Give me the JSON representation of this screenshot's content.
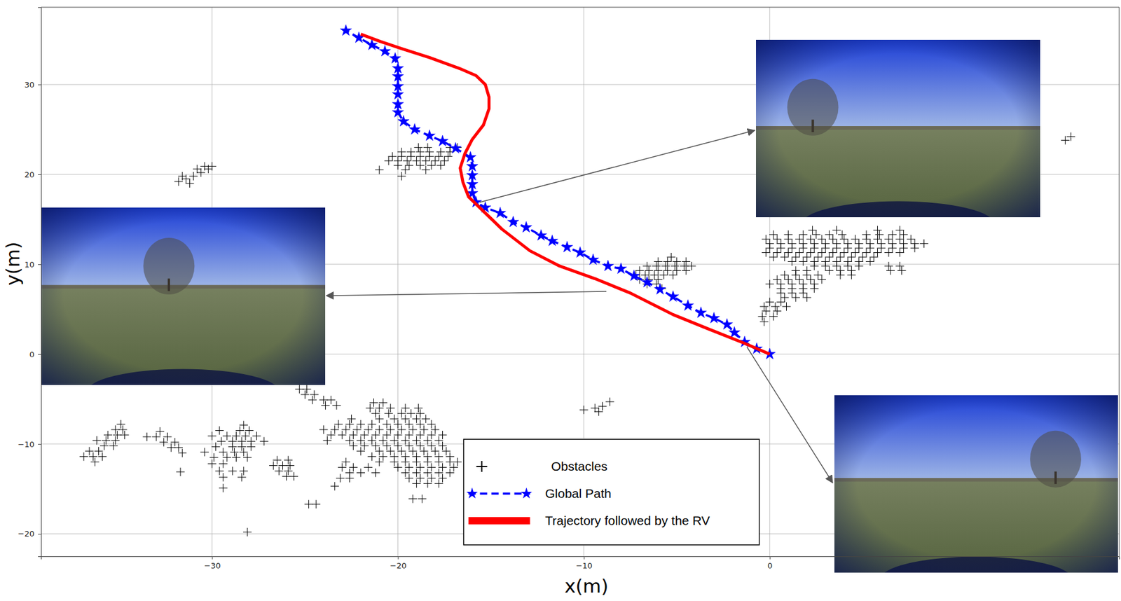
{
  "chart_data": {
    "type": "scatter",
    "xlabel": "x(m)",
    "ylabel": "y(m)",
    "xlim": [
      -39.2,
      18.8
    ],
    "ylim": [
      -22.5,
      38.6
    ],
    "xticks": [
      {
        "value": -30,
        "label": "−30"
      },
      {
        "value": -20,
        "label": "−20"
      },
      {
        "value": -10,
        "label": "−10"
      },
      0
    ],
    "yticks": [
      {
        "value": -20,
        "label": "−20"
      },
      {
        "value": -10,
        "label": "−10"
      },
      0,
      10,
      20,
      30
    ],
    "grid": true,
    "legend": "lower center",
    "series": [
      {
        "name": "Obstacles",
        "type": "scatter",
        "marker": "plus",
        "color": "#000000",
        "x": [
          15.9,
          16.2,
          -31.8,
          -31.4,
          -31.0,
          -30.6,
          -30.2,
          -31.2,
          -30.8,
          -30.4,
          -31.6,
          -30.0,
          -18.9,
          -18.4,
          -17.2,
          -16.8,
          -19.8,
          -19.3,
          -18.8,
          -18.3,
          -17.7,
          -17.2,
          -20.3,
          -19.8,
          -19.3,
          -18.8,
          -18.3,
          -17.8,
          -17.3,
          -20.5,
          -20.0,
          -19.5,
          -19.0,
          -18.5,
          -18.0,
          -17.5,
          -20.0,
          -19.4,
          -18.8,
          -18.2,
          -17.7,
          -21.0,
          -19.6,
          -18.5,
          -19.8,
          -5.3,
          -6.0,
          -5.5,
          -5.0,
          -4.5,
          -6.6,
          -6.1,
          -5.6,
          -5.1,
          -4.6,
          -4.2,
          -7.0,
          -6.5,
          -6.0,
          -5.5,
          -5.0,
          -4.5,
          -7.2,
          -6.7,
          -6.2,
          -5.7,
          -5.2,
          -7.0,
          -6.5,
          -6.0,
          -6.6,
          -6.1,
          -5.8,
          2.3,
          3.6,
          5.8,
          7.0,
          0.2,
          1.0,
          1.8,
          2.5,
          3.2,
          3.9,
          5.2,
          5.9,
          6.6,
          7.2,
          -0.2,
          0.4,
          1.0,
          1.6,
          2.2,
          2.8,
          3.4,
          4.0,
          4.6,
          5.2,
          5.8,
          6.4,
          7.0,
          7.6,
          0.0,
          0.6,
          1.2,
          1.8,
          2.4,
          3.0,
          3.6,
          4.2,
          4.8,
          5.4,
          6.0,
          6.6,
          7.2,
          7.8,
          8.3,
          0.0,
          0.6,
          1.2,
          1.8,
          2.4,
          3.0,
          3.6,
          4.2,
          4.8,
          5.4,
          6.0,
          6.6,
          7.2,
          7.8,
          -0.2,
          0.4,
          1.0,
          1.6,
          2.2,
          2.8,
          3.4,
          4.0,
          4.6,
          5.2,
          5.8,
          6.4,
          7.0,
          0.2,
          0.8,
          1.4,
          2.0,
          2.6,
          3.2,
          3.8,
          4.4,
          5.0,
          5.6,
          1.2,
          1.8,
          2.4,
          3.0,
          3.6,
          4.2,
          4.8,
          5.4,
          2.4,
          3.0,
          3.6,
          4.2,
          4.8,
          6.4,
          7.0,
          1.4,
          2.0,
          3.2,
          3.8,
          4.4,
          6.5,
          7.1,
          0.8,
          1.4,
          2.0,
          2.6,
          3.8,
          4.4,
          0.4,
          1.0,
          1.6,
          2.2,
          2.8,
          0.0,
          0.6,
          1.2,
          1.8,
          2.4,
          0.6,
          1.2,
          1.8,
          2.4,
          0.6,
          1.2,
          1.8,
          0.8,
          1.4,
          2.0,
          0.0,
          0.6,
          -0.3,
          0.3,
          0.9,
          -0.2,
          0.4,
          -0.4,
          0.2,
          -0.3,
          -10.0,
          -9.4,
          -9.0,
          -8.6,
          -9.2,
          -34.9,
          -35.2,
          -34.8,
          -35.6,
          -35.1,
          -34.7,
          -36.2,
          -35.7,
          -35.2,
          -35.8,
          -35.3,
          -36.6,
          -36.1,
          -36.9,
          -36.4,
          -35.9,
          -36.3,
          -32.8,
          -33.5,
          -33.0,
          -32.4,
          -32.6,
          -32.0,
          -32.2,
          -31.8,
          -31.6,
          -31.7,
          -28.3,
          -29.6,
          -28.5,
          -28.0,
          -30.0,
          -29.2,
          -28.7,
          -28.2,
          -27.6,
          -29.5,
          -28.9,
          -28.4,
          -27.9,
          -27.2,
          -29.8,
          -28.9,
          -28.4,
          -27.9,
          -30.4,
          -29.4,
          -28.8,
          -28.3,
          -29.9,
          -29.2,
          -28.7,
          -28.1,
          -30.0,
          -29.4,
          -29.6,
          -28.9,
          -28.3,
          -29.4,
          -28.4,
          -29.4,
          -28.1,
          -26.5,
          -25.9,
          -26.7,
          -26.2,
          -25.8,
          -26.4,
          -25.9,
          -26.0,
          -25.6,
          -25.3,
          -24.9,
          -25.0,
          -24.5,
          -24.6,
          -24.0,
          -23.6,
          -23.9,
          -23.3,
          -24.8,
          -24.4,
          -21.3,
          -20.8,
          -21.5,
          -21.0,
          -20.4,
          -19.6,
          -18.9,
          -21.2,
          -20.5,
          -19.8,
          -19.3,
          -18.8,
          -22.5,
          -21.0,
          -20.2,
          -19.6,
          -19.0,
          -18.5,
          -23.2,
          -22.6,
          -22.0,
          -21.4,
          -20.6,
          -20.0,
          -19.4,
          -18.8,
          -18.2,
          -24.0,
          -23.4,
          -22.8,
          -22.2,
          -21.6,
          -21.0,
          -20.4,
          -19.8,
          -19.2,
          -18.6,
          -18.0,
          -23.6,
          -23.0,
          -22.4,
          -21.8,
          -21.2,
          -20.6,
          -20.0,
          -19.4,
          -18.8,
          -18.2,
          -17.6,
          -23.8,
          -22.6,
          -22.0,
          -21.4,
          -20.8,
          -20.2,
          -19.6,
          -19.0,
          -18.4,
          -17.8,
          -22.4,
          -21.8,
          -21.2,
          -20.6,
          -20.0,
          -19.4,
          -18.8,
          -18.2,
          -17.6,
          -22.0,
          -21.0,
          -20.4,
          -19.8,
          -19.2,
          -18.6,
          -18.0,
          -17.4,
          -21.4,
          -20.8,
          -20.2,
          -19.6,
          -19.0,
          -18.4,
          -17.8,
          -17.2,
          -22.8,
          -21.0,
          -20.2,
          -19.6,
          -19.0,
          -18.4,
          -17.8,
          -17.2,
          -16.8,
          -23.0,
          -22.4,
          -21.6,
          -20.0,
          -19.4,
          -18.8,
          -18.2,
          -17.6,
          -17.0,
          -22.6,
          -22.0,
          -21.2,
          -19.6,
          -19.0,
          -18.4,
          -17.8,
          -17.2,
          -23.1,
          -22.6,
          -19.4,
          -18.8,
          -18.2,
          -17.6,
          -19.0,
          -18.4,
          -17.8,
          -23.4,
          -19.2,
          -18.7
        ],
        "values": [
          23.8,
          24.2,
          19.2,
          19.5,
          19.8,
          20.2,
          20.6,
          19.0,
          20.6,
          20.9,
          19.8,
          20.9,
          23.0,
          23.0,
          23.0,
          23.0,
          22.5,
          22.5,
          22.5,
          22.5,
          22.5,
          22.5,
          22.0,
          22.0,
          22.0,
          22.0,
          22.0,
          22.0,
          22.0,
          21.5,
          21.5,
          21.5,
          21.5,
          21.5,
          21.5,
          21.5,
          21.0,
          21.0,
          21.0,
          21.0,
          21.0,
          20.5,
          20.5,
          20.5,
          19.8,
          10.8,
          10.3,
          10.3,
          10.3,
          10.3,
          9.8,
          9.8,
          9.8,
          9.8,
          9.8,
          9.8,
          9.3,
          9.3,
          9.3,
          9.3,
          9.3,
          9.3,
          8.8,
          8.8,
          8.8,
          8.8,
          8.8,
          8.3,
          8.3,
          8.3,
          7.8,
          7.8,
          7.3,
          13.8,
          13.8,
          13.8,
          13.8,
          13.3,
          13.3,
          13.3,
          13.3,
          13.3,
          13.3,
          13.3,
          13.3,
          13.3,
          13.3,
          12.8,
          12.8,
          12.8,
          12.8,
          12.8,
          12.8,
          12.8,
          12.8,
          12.8,
          12.8,
          12.8,
          12.8,
          12.8,
          12.8,
          12.3,
          12.3,
          12.3,
          12.3,
          12.3,
          12.3,
          12.3,
          12.3,
          12.3,
          12.3,
          12.3,
          12.3,
          12.3,
          12.3,
          12.3,
          11.8,
          11.8,
          11.8,
          11.8,
          11.8,
          11.8,
          11.8,
          11.8,
          11.8,
          11.8,
          11.8,
          11.8,
          11.8,
          11.8,
          11.3,
          11.3,
          11.3,
          11.3,
          11.3,
          11.3,
          11.3,
          11.3,
          11.3,
          11.3,
          11.3,
          11.3,
          11.3,
          10.8,
          10.8,
          10.8,
          10.8,
          10.8,
          10.8,
          10.8,
          10.8,
          10.8,
          10.8,
          10.3,
          10.3,
          10.3,
          10.3,
          10.3,
          10.3,
          10.3,
          10.3,
          9.8,
          9.8,
          9.8,
          9.8,
          9.8,
          9.8,
          9.8,
          9.3,
          9.3,
          9.3,
          9.3,
          9.3,
          9.3,
          9.3,
          8.8,
          8.8,
          8.8,
          8.8,
          8.8,
          8.8,
          8.3,
          8.3,
          8.3,
          8.3,
          8.3,
          7.8,
          7.8,
          7.8,
          7.8,
          7.8,
          7.3,
          7.3,
          7.3,
          7.3,
          6.8,
          6.8,
          6.8,
          6.3,
          6.3,
          6.3,
          5.8,
          5.8,
          5.3,
          5.3,
          5.3,
          4.8,
          4.8,
          4.2,
          4.2,
          3.6,
          -6.2,
          -6.0,
          -5.8,
          -5.3,
          -6.4,
          -7.8,
          -8.4,
          -8.4,
          -9.0,
          -9.0,
          -9.0,
          -9.6,
          -9.6,
          -9.6,
          -10.2,
          -10.2,
          -10.8,
          -10.8,
          -11.4,
          -11.4,
          -11.4,
          -12.0,
          -8.6,
          -9.2,
          -9.2,
          -9.2,
          -9.8,
          -9.8,
          -10.4,
          -10.4,
          -11.0,
          -13.1,
          -7.9,
          -8.5,
          -8.5,
          -8.5,
          -9.1,
          -9.1,
          -9.1,
          -9.1,
          -9.1,
          -9.7,
          -9.7,
          -9.7,
          -9.7,
          -9.7,
          -10.3,
          -10.3,
          -10.3,
          -10.3,
          -10.9,
          -10.9,
          -10.9,
          -10.9,
          -11.5,
          -11.5,
          -11.5,
          -11.5,
          -12.2,
          -12.2,
          -13.0,
          -13.0,
          -13.0,
          -13.7,
          -13.7,
          -14.9,
          -19.8,
          -11.8,
          -11.8,
          -12.4,
          -12.4,
          -12.4,
          -13.0,
          -13.0,
          -13.6,
          -13.6,
          -3.9,
          -3.9,
          -4.5,
          -4.5,
          -5.1,
          -5.1,
          -5.1,
          -5.7,
          -5.7,
          -16.7,
          -16.7,
          -5.4,
          -5.4,
          -6.0,
          -6.0,
          -6.0,
          -6.0,
          -6.0,
          -6.6,
          -6.6,
          -6.6,
          -6.6,
          -6.6,
          -7.2,
          -7.2,
          -7.2,
          -7.2,
          -7.2,
          -7.2,
          -7.8,
          -7.8,
          -7.8,
          -7.8,
          -7.8,
          -7.8,
          -7.8,
          -7.8,
          -7.8,
          -8.4,
          -8.4,
          -8.4,
          -8.4,
          -8.4,
          -8.4,
          -8.4,
          -8.4,
          -8.4,
          -8.4,
          -8.4,
          -9.0,
          -9.0,
          -9.0,
          -9.0,
          -9.0,
          -9.0,
          -9.0,
          -9.0,
          -9.0,
          -9.0,
          -9.0,
          -9.6,
          -9.6,
          -9.6,
          -9.6,
          -9.6,
          -9.6,
          -9.6,
          -9.6,
          -9.6,
          -9.6,
          -10.2,
          -10.2,
          -10.2,
          -10.2,
          -10.2,
          -10.2,
          -10.2,
          -10.2,
          -10.2,
          -10.8,
          -10.8,
          -10.8,
          -10.8,
          -10.8,
          -10.8,
          -10.8,
          -10.8,
          -11.4,
          -11.4,
          -11.4,
          -11.4,
          -11.4,
          -11.4,
          -11.4,
          -11.4,
          -12.0,
          -12.0,
          -12.0,
          -12.0,
          -12.0,
          -12.0,
          -12.0,
          -12.0,
          -12.0,
          -12.6,
          -12.6,
          -12.6,
          -12.6,
          -12.6,
          -12.6,
          -12.6,
          -12.6,
          -12.6,
          -13.2,
          -13.2,
          -13.2,
          -13.2,
          -13.2,
          -13.2,
          -13.2,
          -13.2,
          -13.8,
          -13.8,
          -13.8,
          -13.8,
          -13.8,
          -13.8,
          -14.4,
          -14.4,
          -14.4,
          -14.7,
          -16.1,
          -16.1
        ]
      },
      {
        "name": "Global Path",
        "type": "line",
        "marker": "star",
        "line_style": "dashed",
        "color": "#0000ff",
        "x": [
          0,
          -0.7,
          -1.35,
          -1.9,
          -2.3,
          -3.0,
          -3.7,
          -4.4,
          -5.2,
          -5.9,
          -6.6,
          -7.3,
          -8.0,
          -8.7,
          -9.5,
          -10.2,
          -10.9,
          -11.7,
          -12.3,
          -13.1,
          -13.8,
          -14.5,
          -15.3,
          -15.8,
          -16.0,
          -16.0,
          -16.0,
          -16.0,
          -16.1,
          -16.9,
          -17.6,
          -18.3,
          -19.1,
          -19.7,
          -20.0,
          -20.0,
          -20.0,
          -20.0,
          -20.0,
          -20.0,
          -20.15,
          -20.7,
          -21.4,
          -22.1,
          -22.8
        ],
        "values": [
          0,
          0.6,
          1.35,
          2.4,
          3.3,
          4.0,
          4.6,
          5.4,
          6.4,
          7.2,
          8.0,
          8.7,
          9.5,
          9.8,
          10.5,
          11.3,
          11.9,
          12.6,
          13.2,
          14.1,
          14.7,
          15.7,
          16.3,
          16.9,
          17.9,
          18.9,
          19.9,
          20.9,
          21.9,
          22.9,
          23.7,
          24.3,
          25.0,
          25.9,
          26.9,
          27.8,
          28.9,
          29.8,
          30.9,
          31.8,
          32.9,
          33.7,
          34.4,
          35.2,
          36.0
        ]
      },
      {
        "name": "Trajectory followed by the RV",
        "type": "line",
        "line_style": "solid",
        "color": "#ff0000",
        "x": [
          0,
          -1.35,
          -3.3,
          -5.2,
          -7.5,
          -9.4,
          -11.3,
          -12.9,
          -14.4,
          -15.6,
          -16.2,
          -16.5,
          -16.65,
          -16.4,
          -16.0,
          -15.4,
          -15.1,
          -15.1,
          -15.3,
          -15.8,
          -16.7,
          -18.3,
          -19.8,
          -20.96,
          -22.0
        ],
        "values": [
          0,
          1.2,
          2.8,
          4.4,
          6.8,
          8.4,
          9.8,
          11.5,
          13.9,
          16.3,
          17.5,
          19.1,
          20.7,
          22.3,
          23.9,
          25.5,
          27.3,
          28.6,
          30.0,
          31.0,
          31.8,
          33.0,
          34.0,
          34.8,
          35.6
        ]
      }
    ]
  }
}
